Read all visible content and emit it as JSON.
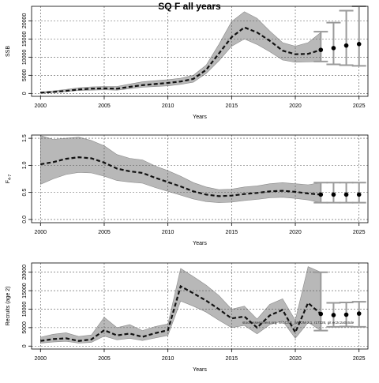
{
  "figure": {
    "title": "SQ F all years"
  },
  "chart_data": [
    {
      "type": "line",
      "xlabel": "Years",
      "ylabel": "SSB",
      "xlim": [
        1999.3,
        2025.7
      ],
      "ylim": [
        -800,
        24000
      ],
      "xticks": [
        2000,
        2005,
        2010,
        2015,
        2020,
        2025
      ],
      "yticks": [
        0,
        5000,
        10000,
        15000,
        20000
      ],
      "grid": true,
      "series": [
        {
          "x": [
            2000,
            2001,
            2002,
            2003,
            2004,
            2005,
            2006,
            2007,
            2008,
            2009,
            2010,
            2011,
            2012,
            2013,
            2014,
            2015,
            2016,
            2017,
            2018,
            2019,
            2020,
            2021,
            2022
          ],
          "values": [
            200,
            400,
            700,
            1100,
            1300,
            1400,
            1300,
            1800,
            2300,
            2600,
            2900,
            3300,
            4000,
            6500,
            11000,
            15500,
            18200,
            16800,
            14500,
            11800,
            10800,
            10900,
            12000
          ],
          "lower": [
            100,
            250,
            500,
            800,
            900,
            1000,
            900,
            1300,
            1700,
            1900,
            2100,
            2500,
            3100,
            5500,
            9000,
            13000,
            15000,
            13500,
            11500,
            9200,
            8600,
            8700,
            8800
          ],
          "upper": [
            400,
            700,
            1100,
            1600,
            1800,
            1900,
            1900,
            2600,
            3200,
            3500,
            3800,
            4200,
            5000,
            7800,
            13500,
            19800,
            22500,
            20700,
            17200,
            14000,
            13000,
            14000,
            16800
          ]
        },
        {
          "x": [
            2022,
            2023,
            2024,
            2025
          ],
          "values": [
            12000,
            12500,
            13200,
            13600
          ],
          "lower": [
            8800,
            8000,
            7800,
            7600
          ],
          "upper": [
            17000,
            19500,
            22800,
            24000
          ]
        }
      ]
    },
    {
      "type": "line",
      "xlabel": "Years",
      "ylabel": "F",
      "ylabel_sub": "4-7",
      "xlim": [
        1999.3,
        2025.7
      ],
      "ylim": [
        -0.06,
        1.56
      ],
      "xticks": [
        2000,
        2005,
        2010,
        2015,
        2020,
        2025
      ],
      "yticks": [
        0.0,
        0.5,
        1.0,
        1.5
      ],
      "yticklabels": [
        "0.0",
        "0.5",
        "1.0",
        "1.5"
      ],
      "grid": true,
      "series": [
        {
          "x": [
            2000,
            2001,
            2002,
            2003,
            2004,
            2005,
            2006,
            2007,
            2008,
            2009,
            2010,
            2011,
            2012,
            2013,
            2014,
            2015,
            2016,
            2017,
            2018,
            2019,
            2020,
            2021,
            2022
          ],
          "values": [
            1.02,
            1.06,
            1.12,
            1.15,
            1.13,
            1.05,
            0.94,
            0.89,
            0.86,
            0.77,
            0.69,
            0.61,
            0.52,
            0.46,
            0.43,
            0.44,
            0.47,
            0.49,
            0.52,
            0.53,
            0.51,
            0.48,
            0.46
          ],
          "lower": [
            0.65,
            0.75,
            0.83,
            0.87,
            0.86,
            0.8,
            0.72,
            0.69,
            0.67,
            0.59,
            0.52,
            0.45,
            0.38,
            0.33,
            0.31,
            0.32,
            0.35,
            0.37,
            0.4,
            0.41,
            0.39,
            0.36,
            0.31
          ],
          "upper": [
            1.55,
            1.48,
            1.5,
            1.52,
            1.46,
            1.36,
            1.2,
            1.13,
            1.1,
            0.99,
            0.9,
            0.8,
            0.68,
            0.6,
            0.55,
            0.56,
            0.6,
            0.62,
            0.66,
            0.68,
            0.66,
            0.64,
            0.68
          ]
        },
        {
          "x": [
            2022,
            2023,
            2024,
            2025
          ],
          "values": [
            0.46,
            0.46,
            0.46,
            0.46
          ],
          "lower": [
            0.31,
            0.31,
            0.31,
            0.31
          ],
          "upper": [
            0.68,
            0.68,
            0.68,
            0.68
          ]
        }
      ]
    },
    {
      "type": "line",
      "xlabel": "Years",
      "ylabel": "Recruits (age 2)",
      "xlim": [
        1999.3,
        2025.7
      ],
      "ylim": [
        -800,
        22500
      ],
      "xticks": [
        2000,
        2005,
        2010,
        2015,
        2020,
        2025
      ],
      "yticks": [
        0,
        5000,
        10000,
        15000,
        20000
      ],
      "grid": true,
      "annotation": "stockassessment.org, WGCSE_WHOM 2.1, r17326, git ec2c2a0c6de",
      "series": [
        {
          "x": [
            2000,
            2001,
            2002,
            2003,
            2004,
            2005,
            2006,
            2007,
            2008,
            2009,
            2010,
            2011,
            2012,
            2013,
            2014,
            2015,
            2016,
            2017,
            2018,
            2019,
            2020,
            2021,
            2022
          ],
          "values": [
            1400,
            1900,
            2100,
            1400,
            1800,
            4300,
            2900,
            3400,
            2500,
            3500,
            4300,
            16200,
            14300,
            12300,
            10000,
            7500,
            8000,
            5000,
            8300,
            9800,
            3700,
            11700,
            8700
          ],
          "lower": [
            800,
            1100,
            1300,
            800,
            1000,
            2700,
            1700,
            2100,
            1500,
            2200,
            2900,
            12200,
            10800,
            9200,
            7000,
            5000,
            5600,
            3300,
            5800,
            6800,
            2100,
            6400,
            4200
          ],
          "upper": [
            2400,
            3200,
            3600,
            2600,
            3000,
            7800,
            5000,
            5800,
            4200,
            5300,
            6000,
            21000,
            18800,
            16500,
            13700,
            10000,
            10800,
            7300,
            11300,
            12800,
            7000,
            21500,
            20000
          ]
        },
        {
          "x": [
            2022,
            2023,
            2024,
            2025
          ],
          "values": [
            8700,
            8400,
            8500,
            8800
          ],
          "lower": [
            4200,
            5200,
            5300,
            5200
          ],
          "upper": [
            20000,
            11700,
            11800,
            12000
          ]
        }
      ]
    }
  ]
}
